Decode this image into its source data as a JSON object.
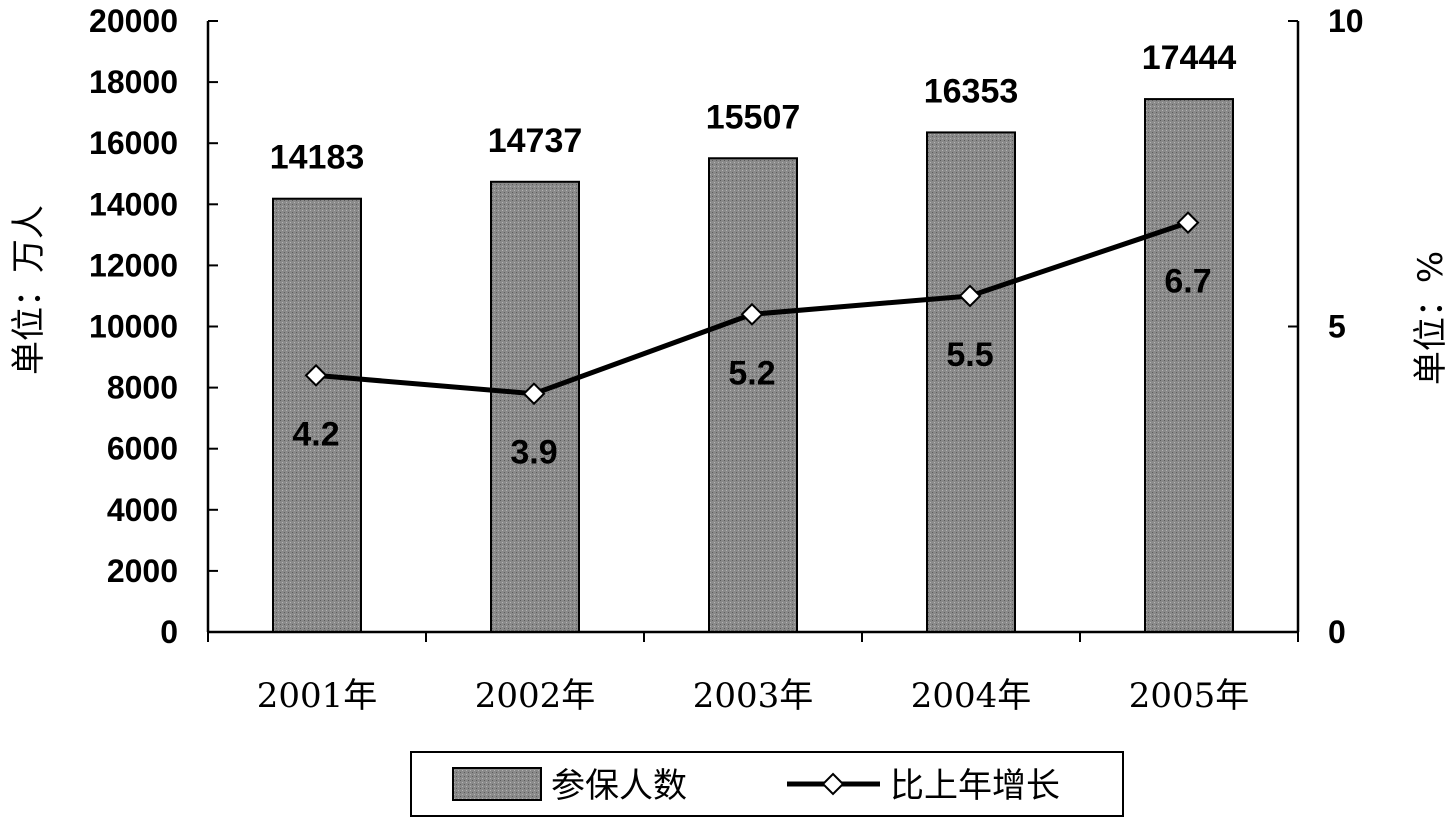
{
  "chart_data": {
    "type": "bar",
    "categories": [
      "2001年",
      "2002年",
      "2003年",
      "2004年",
      "2005年"
    ],
    "series": [
      {
        "name": "参保人数",
        "type": "bar",
        "axis": "left",
        "values": [
          14183,
          14737,
          15507,
          16353,
          17444
        ],
        "labels": [
          "14183",
          "14737",
          "15507",
          "16353",
          "17444"
        ],
        "color": "#8c8c8c"
      },
      {
        "name": "比上年增长",
        "type": "line",
        "axis": "right",
        "values": [
          4.2,
          3.9,
          5.2,
          5.5,
          6.7
        ],
        "labels": [
          "4.2",
          "3.9",
          "5.2",
          "5.5",
          "6.7"
        ],
        "color": "#000000",
        "marker": "diamond"
      }
    ],
    "ylabel": "单位：万人",
    "y2label": "单位：%",
    "ylim": [
      0,
      20000
    ],
    "y2lim": [
      0,
      10
    ],
    "yticks": [
      "0",
      "2000",
      "4000",
      "6000",
      "8000",
      "10000",
      "12000",
      "14000",
      "16000",
      "18000",
      "20000"
    ],
    "y2ticks": [
      "0",
      "5",
      "10"
    ],
    "grid": false,
    "legend_position": "bottom"
  }
}
